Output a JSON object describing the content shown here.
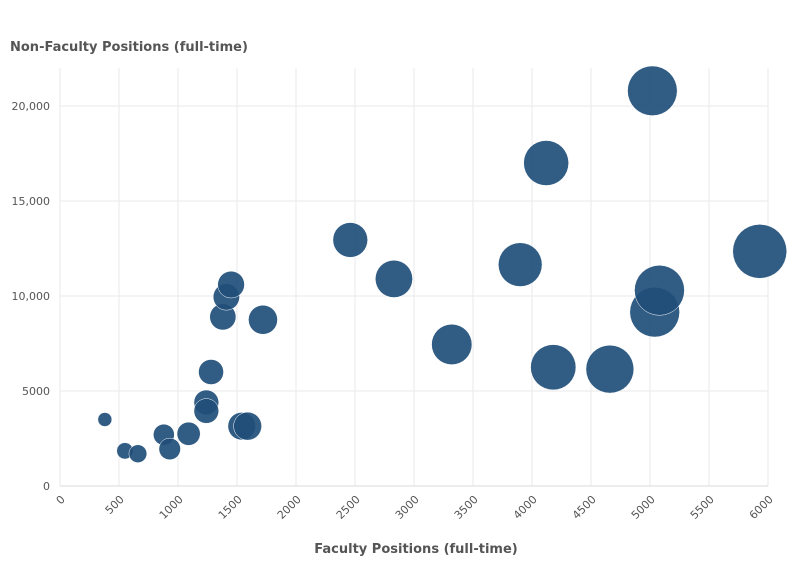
{
  "chart_data": {
    "type": "scatter",
    "title": "",
    "xlabel": "Faculty Positions (full-time)",
    "ylabel": "Non-Faculty Positions (full-time)",
    "xlim": [
      0,
      6000
    ],
    "ylim": [
      0,
      22000
    ],
    "x_ticks": [
      0,
      500,
      1000,
      1500,
      2000,
      2500,
      3000,
      3500,
      4000,
      4500,
      5000,
      5500,
      6000
    ],
    "x_tick_labels": [
      "0",
      "500",
      "1000",
      "1500",
      "2000",
      "2500",
      "3000",
      "3500",
      "4000",
      "4500",
      "5000",
      "5500",
      "6000"
    ],
    "y_ticks": [
      0,
      5000,
      10000,
      15000,
      20000
    ],
    "y_tick_labels": [
      "0",
      "5000",
      "10,000",
      "15,000",
      "20,000"
    ],
    "grid": true,
    "bubble_color": "#1f4e79",
    "series": [
      {
        "points": [
          {
            "x": 380,
            "y": 3500,
            "size": 400
          },
          {
            "x": 550,
            "y": 1850,
            "size": 550
          },
          {
            "x": 660,
            "y": 1700,
            "size": 650
          },
          {
            "x": 880,
            "y": 2700,
            "size": 900
          },
          {
            "x": 930,
            "y": 1950,
            "size": 950
          },
          {
            "x": 1090,
            "y": 2750,
            "size": 1100
          },
          {
            "x": 1240,
            "y": 4400,
            "size": 1250
          },
          {
            "x": 1240,
            "y": 3950,
            "size": 1250
          },
          {
            "x": 1280,
            "y": 6000,
            "size": 1280
          },
          {
            "x": 1380,
            "y": 8900,
            "size": 1400
          },
          {
            "x": 1410,
            "y": 9950,
            "size": 1420
          },
          {
            "x": 1450,
            "y": 10600,
            "size": 1460
          },
          {
            "x": 1540,
            "y": 3150,
            "size": 1550
          },
          {
            "x": 1590,
            "y": 3150,
            "size": 1600
          },
          {
            "x": 1720,
            "y": 8750,
            "size": 1720
          },
          {
            "x": 2460,
            "y": 12950,
            "size": 2460
          },
          {
            "x": 2830,
            "y": 10900,
            "size": 2830
          },
          {
            "x": 3320,
            "y": 7450,
            "size": 3320
          },
          {
            "x": 3900,
            "y": 11650,
            "size": 3900
          },
          {
            "x": 4120,
            "y": 17000,
            "size": 4120
          },
          {
            "x": 4180,
            "y": 6250,
            "size": 4180
          },
          {
            "x": 4660,
            "y": 6150,
            "size": 4660
          },
          {
            "x": 5020,
            "y": 20800,
            "size": 5020
          },
          {
            "x": 5040,
            "y": 9150,
            "size": 5040
          },
          {
            "x": 5080,
            "y": 10300,
            "size": 5080
          },
          {
            "x": 5930,
            "y": 12350,
            "size": 5930
          }
        ]
      }
    ]
  }
}
